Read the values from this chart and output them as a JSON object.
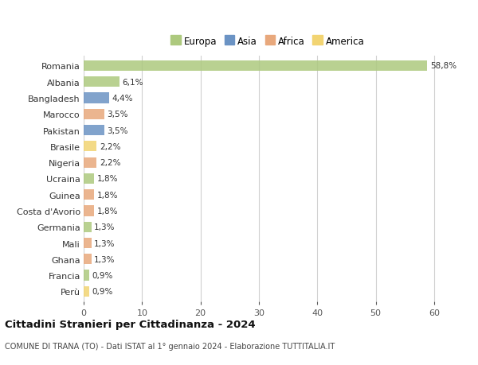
{
  "countries": [
    "Romania",
    "Albania",
    "Bangladesh",
    "Marocco",
    "Pakistan",
    "Brasile",
    "Nigeria",
    "Ucraina",
    "Guinea",
    "Costa d'Avorio",
    "Germania",
    "Mali",
    "Ghana",
    "Francia",
    "Perù"
  ],
  "values": [
    58.8,
    6.1,
    4.4,
    3.5,
    3.5,
    2.2,
    2.2,
    1.8,
    1.8,
    1.8,
    1.3,
    1.3,
    1.3,
    0.9,
    0.9
  ],
  "labels": [
    "58,8%",
    "6,1%",
    "4,4%",
    "3,5%",
    "3,5%",
    "2,2%",
    "2,2%",
    "1,8%",
    "1,8%",
    "1,8%",
    "1,3%",
    "1,3%",
    "1,3%",
    "0,9%",
    "0,9%"
  ],
  "continents": [
    "Europa",
    "Europa",
    "Asia",
    "Africa",
    "Asia",
    "America",
    "Africa",
    "Europa",
    "Africa",
    "Africa",
    "Europa",
    "Africa",
    "Africa",
    "Europa",
    "America"
  ],
  "continent_colors": {
    "Europa": "#adc97e",
    "Asia": "#6b93c4",
    "Africa": "#e8a87c",
    "America": "#f2d472"
  },
  "legend_order": [
    "Europa",
    "Asia",
    "Africa",
    "America"
  ],
  "title": "Cittadini Stranieri per Cittadinanza - 2024",
  "subtitle": "COMUNE DI TRANA (TO) - Dati ISTAT al 1° gennaio 2024 - Elaborazione TUTTITALIA.IT",
  "xlim": [
    0,
    63
  ],
  "xticks": [
    0,
    10,
    20,
    30,
    40,
    50,
    60
  ],
  "bg_color": "#ffffff",
  "grid_color": "#d0d0d0",
  "bar_height": 0.65
}
